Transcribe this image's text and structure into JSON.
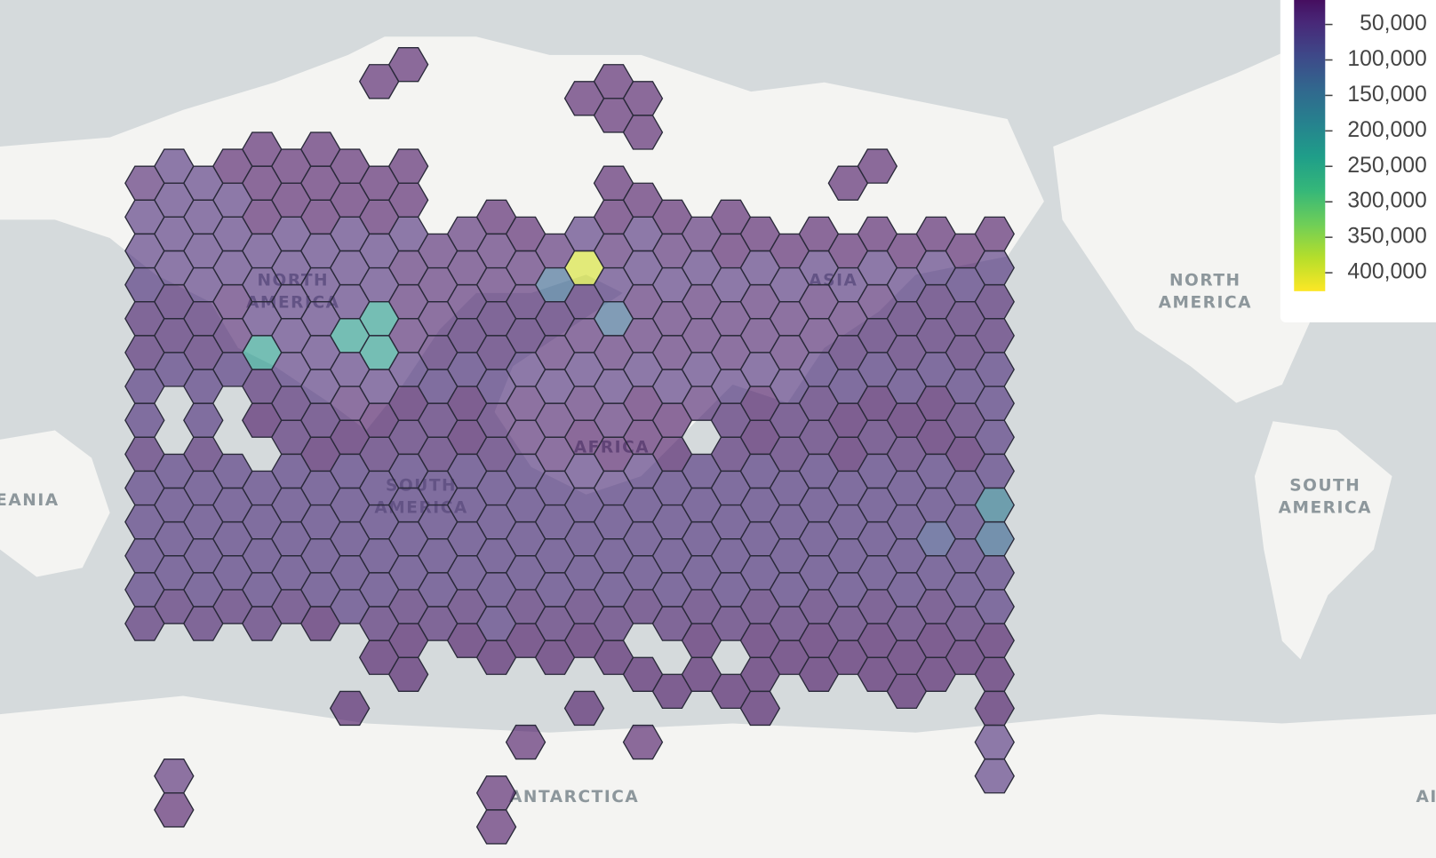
{
  "map": {
    "labels": [
      {
        "lines": [
          "NORTH",
          "AMERICA"
        ]
      },
      {
        "lines": [
          "SOUTH",
          "AMERICA"
        ]
      },
      {
        "lines": [
          "EANIA"
        ]
      },
      {
        "lines": [
          "ANTARCTICA"
        ]
      },
      {
        "lines": [
          "ASIA"
        ]
      },
      {
        "lines": [
          "AFRICA"
        ]
      },
      {
        "lines": [
          "AI"
        ]
      },
      {
        "lines": [
          "NORTH",
          "AMERICA"
        ]
      },
      {
        "lines": [
          "SOUTH",
          "AMERICA"
        ]
      }
    ]
  },
  "hexbin": {
    "opacity": 0.6,
    "colors": [
      "#440154",
      "#482878",
      "#3e4989",
      "#31688e",
      "#26828e",
      "#1f9e89",
      "#35b779",
      "#6ece58",
      "#b5de2b",
      "#fde725"
    ],
    "rows": [
      [
        null,
        null,
        null,
        null,
        null,
        null,
        null,
        null,
        15000,
        15000,
        null,
        null,
        null,
        null,
        null,
        null,
        15000,
        null,
        null,
        null,
        null,
        null,
        null,
        null,
        null,
        null,
        null,
        null,
        null,
        null
      ],
      [
        null,
        null,
        null,
        null,
        null,
        null,
        null,
        null,
        null,
        null,
        null,
        null,
        null,
        null,
        null,
        15000,
        15000,
        15000,
        null,
        null,
        null,
        null,
        null,
        null,
        null,
        null,
        null,
        null,
        null,
        null
      ],
      [
        null,
        null,
        null,
        null,
        15000,
        null,
        15000,
        null,
        null,
        null,
        null,
        null,
        null,
        null,
        null,
        null,
        null,
        15000,
        null,
        null,
        null,
        null,
        null,
        null,
        null,
        null,
        null,
        null,
        null,
        null
      ],
      [
        30000,
        45000,
        45000,
        15000,
        15000,
        15000,
        15000,
        15000,
        15000,
        15000,
        null,
        null,
        null,
        null,
        null,
        null,
        15000,
        null,
        null,
        null,
        null,
        null,
        null,
        null,
        15000,
        15000,
        null,
        null,
        null,
        null
      ],
      [
        45000,
        45000,
        45000,
        45000,
        15000,
        15000,
        15000,
        15000,
        15000,
        15000,
        null,
        null,
        15000,
        null,
        null,
        null,
        15000,
        15000,
        15000,
        null,
        15000,
        null,
        null,
        null,
        null,
        null,
        null,
        null,
        null,
        null
      ],
      [
        45000,
        45000,
        45000,
        45000,
        45000,
        45000,
        45000,
        45000,
        45000,
        45000,
        30000,
        30000,
        30000,
        15000,
        30000,
        45000,
        30000,
        45000,
        30000,
        30000,
        15000,
        15000,
        15000,
        15000,
        15000,
        15000,
        15000,
        15000,
        15000,
        15000
      ],
      [
        45000,
        45000,
        45000,
        45000,
        45000,
        45000,
        45000,
        45000,
        45000,
        30000,
        30000,
        30000,
        30000,
        30000,
        130000,
        400000,
        45000,
        45000,
        45000,
        45000,
        45000,
        45000,
        45000,
        45000,
        45000,
        45000,
        45000,
        45000,
        45000,
        45000
      ],
      [
        30000,
        30000,
        30000,
        30000,
        45000,
        45000,
        45000,
        45000,
        230000,
        30000,
        30000,
        30000,
        30000,
        30000,
        30000,
        30000,
        130000,
        30000,
        30000,
        30000,
        30000,
        30000,
        30000,
        30000,
        30000,
        30000,
        30000,
        30000,
        30000,
        30000
      ],
      [
        30000,
        30000,
        30000,
        30000,
        230000,
        45000,
        45000,
        230000,
        230000,
        30000,
        30000,
        30000,
        30000,
        30000,
        30000,
        30000,
        30000,
        30000,
        30000,
        30000,
        30000,
        30000,
        30000,
        30000,
        30000,
        30000,
        30000,
        30000,
        30000,
        30000
      ],
      [
        45000,
        45000,
        45000,
        45000,
        30000,
        45000,
        45000,
        45000,
        45000,
        45000,
        45000,
        45000,
        45000,
        45000,
        45000,
        45000,
        45000,
        45000,
        45000,
        45000,
        45000,
        45000,
        45000,
        45000,
        45000,
        45000,
        45000,
        45000,
        45000,
        45000
      ],
      [
        45000,
        null,
        45000,
        null,
        15000,
        30000,
        30000,
        30000,
        15000,
        15000,
        30000,
        15000,
        30000,
        30000,
        30000,
        30000,
        30000,
        15000,
        15000,
        30000,
        30000,
        15000,
        30000,
        30000,
        15000,
        15000,
        15000,
        15000,
        30000,
        45000
      ],
      [
        30000,
        null,
        30000,
        null,
        null,
        30000,
        15000,
        15000,
        30000,
        30000,
        30000,
        15000,
        30000,
        30000,
        30000,
        15000,
        15000,
        15000,
        15000,
        null,
        30000,
        15000,
        30000,
        30000,
        15000,
        30000,
        30000,
        15000,
        15000,
        45000
      ],
      [
        45000,
        45000,
        45000,
        45000,
        45000,
        45000,
        45000,
        45000,
        45000,
        45000,
        45000,
        45000,
        45000,
        45000,
        45000,
        45000,
        45000,
        45000,
        45000,
        45000,
        45000,
        45000,
        45000,
        45000,
        45000,
        45000,
        45000,
        45000,
        45000,
        45000
      ],
      [
        45000,
        45000,
        45000,
        45000,
        45000,
        45000,
        45000,
        45000,
        45000,
        45000,
        45000,
        45000,
        45000,
        45000,
        45000,
        45000,
        45000,
        45000,
        45000,
        45000,
        45000,
        45000,
        45000,
        45000,
        45000,
        45000,
        45000,
        45000,
        45000,
        170000
      ],
      [
        45000,
        45000,
        45000,
        45000,
        45000,
        45000,
        45000,
        45000,
        45000,
        45000,
        45000,
        45000,
        45000,
        45000,
        45000,
        45000,
        45000,
        45000,
        45000,
        45000,
        45000,
        45000,
        45000,
        45000,
        45000,
        45000,
        45000,
        90000,
        45000,
        130000
      ],
      [
        45000,
        45000,
        45000,
        45000,
        45000,
        45000,
        45000,
        45000,
        45000,
        45000,
        45000,
        45000,
        45000,
        45000,
        45000,
        45000,
        45000,
        45000,
        45000,
        45000,
        45000,
        45000,
        45000,
        45000,
        45000,
        45000,
        45000,
        45000,
        45000,
        45000
      ],
      [
        30000,
        30000,
        30000,
        30000,
        30000,
        30000,
        15000,
        45000,
        30000,
        30000,
        30000,
        30000,
        45000,
        30000,
        30000,
        30000,
        30000,
        30000,
        30000,
        30000,
        30000,
        30000,
        30000,
        30000,
        30000,
        30000,
        30000,
        30000,
        30000,
        45000
      ],
      [
        null,
        null,
        null,
        null,
        null,
        null,
        null,
        null,
        15000,
        15000,
        null,
        15000,
        15000,
        15000,
        15000,
        15000,
        15000,
        null,
        null,
        15000,
        null,
        15000,
        15000,
        15000,
        15000,
        15000,
        15000,
        15000,
        15000,
        15000
      ],
      [
        null,
        null,
        null,
        null,
        null,
        null,
        null,
        null,
        null,
        15000,
        null,
        null,
        null,
        null,
        null,
        null,
        null,
        15000,
        15000,
        15000,
        15000,
        15000,
        null,
        15000,
        null,
        15000,
        15000,
        15000,
        null,
        15000
      ],
      [
        null,
        null,
        null,
        null,
        null,
        null,
        null,
        15000,
        null,
        null,
        null,
        null,
        null,
        null,
        null,
        15000,
        null,
        null,
        null,
        null,
        null,
        15000,
        null,
        null,
        null,
        null,
        null,
        null,
        null,
        15000
      ],
      [
        null,
        null,
        null,
        null,
        null,
        null,
        null,
        null,
        null,
        null,
        null,
        null,
        null,
        15000,
        null,
        null,
        null,
        15000,
        null,
        null,
        null,
        null,
        null,
        null,
        null,
        null,
        null,
        null,
        null,
        45000
      ],
      [
        null,
        30000,
        null,
        null,
        null,
        null,
        null,
        null,
        null,
        null,
        null,
        null,
        15000,
        null,
        null,
        null,
        null,
        null,
        null,
        null,
        null,
        null,
        null,
        null,
        null,
        null,
        null,
        null,
        null,
        45000
      ],
      [
        null,
        15000,
        null,
        null,
        null,
        null,
        null,
        null,
        null,
        null,
        null,
        null,
        15000,
        null,
        null,
        null,
        null,
        null,
        null,
        null,
        null,
        null,
        null,
        null,
        null,
        null,
        null,
        null,
        null,
        null
      ]
    ]
  },
  "legend": {
    "range": [
      0,
      426000
    ],
    "ticks": [
      {
        "value": 50000,
        "label": "50,000"
      },
      {
        "value": 100000,
        "label": "100,000"
      },
      {
        "value": 150000,
        "label": "150,000"
      },
      {
        "value": 200000,
        "label": "200,000"
      },
      {
        "value": 250000,
        "label": "250,000"
      },
      {
        "value": 300000,
        "label": "300,000"
      },
      {
        "value": 350000,
        "label": "350,000"
      },
      {
        "value": 400000,
        "label": "400,000"
      }
    ]
  }
}
